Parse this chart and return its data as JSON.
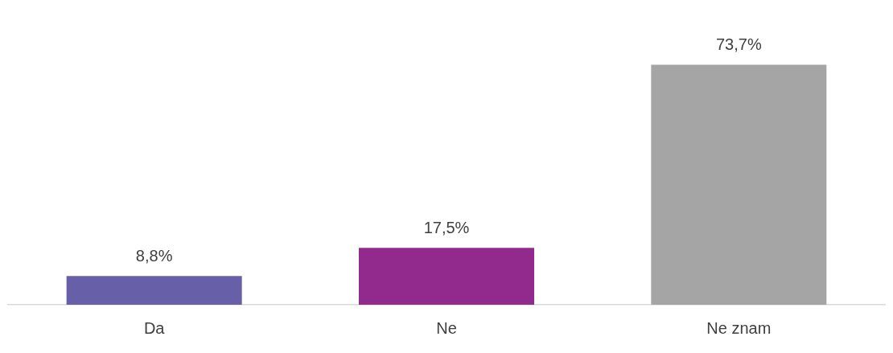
{
  "chart_data": {
    "type": "bar",
    "categories": [
      "Da",
      "Ne",
      "Ne znam"
    ],
    "values": [
      8.8,
      17.5,
      73.7
    ],
    "colors": [
      "#6760a9",
      "#92298d",
      "#a5a5a5"
    ],
    "value_labels": [
      "8,8%",
      "17,5%",
      "73,7%"
    ],
    "tick_labels": "x"
  }
}
